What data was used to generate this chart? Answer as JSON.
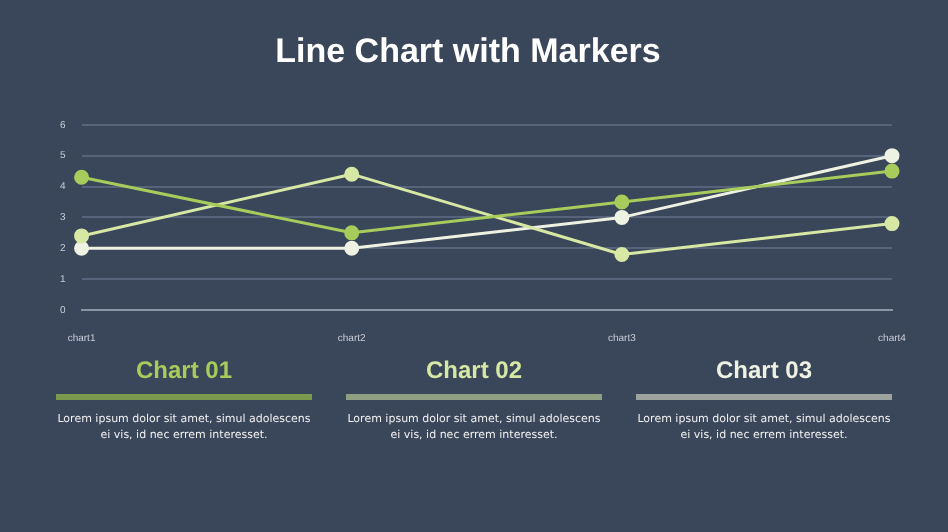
{
  "chart_data": [
    {
      "type": "line",
      "title": "Line Chart with Markers",
      "categories": [
        "chart1",
        "chart2",
        "chart3",
        "chart4"
      ],
      "series": [
        {
          "color": "#a8cc5c",
          "values": [
            4.3,
            2.5,
            3.5,
            4.5
          ]
        },
        {
          "color": "#d6e8a4",
          "values": [
            2.4,
            4.4,
            1.8,
            2.8
          ]
        },
        {
          "color": "#eef2e2",
          "values": [
            2,
            2,
            3,
            5
          ]
        }
      ],
      "ylim": [
        0,
        6
      ],
      "yticks": [
        0,
        1,
        2,
        3,
        4,
        5,
        6
      ],
      "grid": "y",
      "legend": false,
      "marker": "circle",
      "line_style": "solid"
    },
    {
      "type": "other",
      "annotations": [
        "Chart 01",
        "Lorem ipsum dolor sit amet, simul adolescens ei vis, id nec errem  interesset.",
        "Chart 02",
        "Lorem ipsum dolor sit amet, simul adolescens ei vis, id nec errem  interesset.",
        "Chart 03",
        "Lorem ipsum dolor sit amet, simul adolescens ei vis, id nec errem  interesset."
      ]
    }
  ]
}
